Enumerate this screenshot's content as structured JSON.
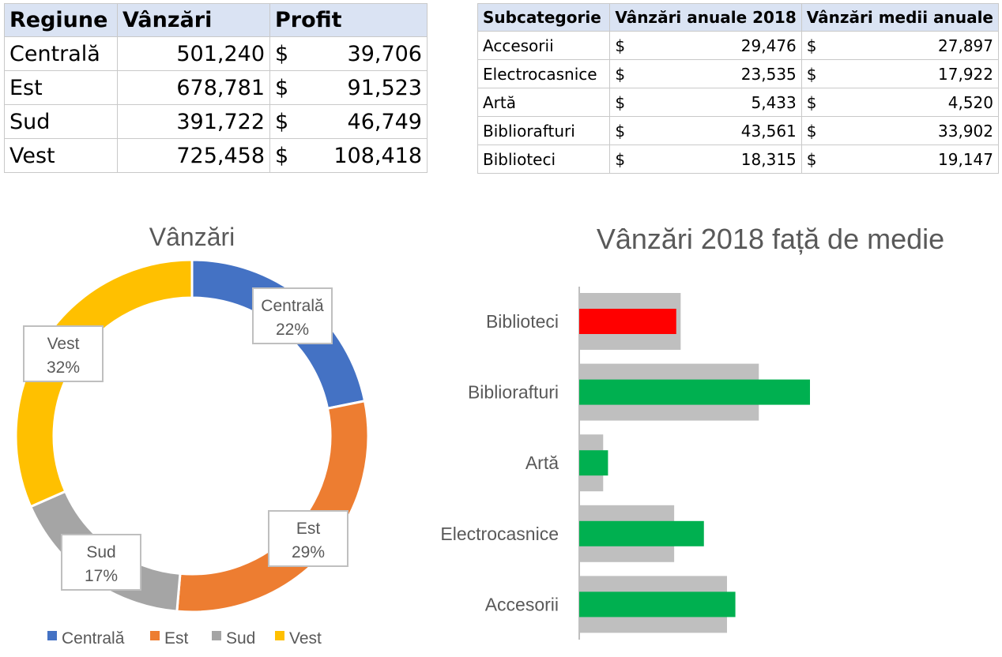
{
  "region_table": {
    "headers": [
      "Regiune",
      "Vânzări",
      "Profit"
    ],
    "rows": [
      {
        "region": "Centrală",
        "sales": "501,240",
        "currency": "$",
        "profit": "39,706"
      },
      {
        "region": "Est",
        "sales": "678,781",
        "currency": "$",
        "profit": "91,523"
      },
      {
        "region": "Sud",
        "sales": "391,722",
        "currency": "$",
        "profit": "46,749"
      },
      {
        "region": "Vest",
        "sales": "725,458",
        "currency": "$",
        "profit": "108,418"
      }
    ]
  },
  "subcategory_table": {
    "headers": [
      "Subcategorie",
      "Vânzări anuale 2018",
      "Vânzări medii anuale"
    ],
    "rows": [
      {
        "name": "Accesorii",
        "cur1": "$",
        "sales2018": "29,476",
        "cur2": "$",
        "avg": "27,897"
      },
      {
        "name": "Electrocasnice",
        "cur1": "$",
        "sales2018": "23,535",
        "cur2": "$",
        "avg": "17,922"
      },
      {
        "name": "Artă",
        "cur1": "$",
        "sales2018": "5,433",
        "cur2": "$",
        "avg": "4,520"
      },
      {
        "name": "Bibliorafturi",
        "cur1": "$",
        "sales2018": "43,561",
        "cur2": "$",
        "avg": "33,902"
      },
      {
        "name": "Biblioteci",
        "cur1": "$",
        "sales2018": "18,315",
        "cur2": "$",
        "avg": "19,147"
      }
    ]
  },
  "chart_data": [
    {
      "type": "pie",
      "variant": "doughnut",
      "title": "Vânzări",
      "categories": [
        "Centrală",
        "Est",
        "Sud",
        "Vest"
      ],
      "values": [
        501240,
        678781,
        391722,
        725458
      ],
      "data_labels": [
        "22%",
        "29%",
        "17%",
        "32%"
      ],
      "colors": [
        "#4472c4",
        "#ed7d31",
        "#a5a5a5",
        "#ffc000"
      ],
      "legend": "bottom"
    },
    {
      "type": "bar",
      "orientation": "horizontal",
      "title": "Vânzări 2018 față de medie",
      "categories": [
        "Biblioteci",
        "Bibliorafturi",
        "Artă",
        "Electrocasnice",
        "Accesorii"
      ],
      "series": [
        {
          "values": [
            19147,
            33902,
            4520,
            17922,
            27897
          ],
          "color": "#bfbfbf"
        },
        {
          "values": [
            18315,
            43561,
            5433,
            23535,
            29476
          ],
          "colors": [
            "#ff0000",
            "#00b050",
            "#00b050",
            "#00b050",
            "#00b050"
          ]
        }
      ],
      "xlim": [
        0,
        50000
      ],
      "grid": false,
      "legend": "none"
    }
  ]
}
